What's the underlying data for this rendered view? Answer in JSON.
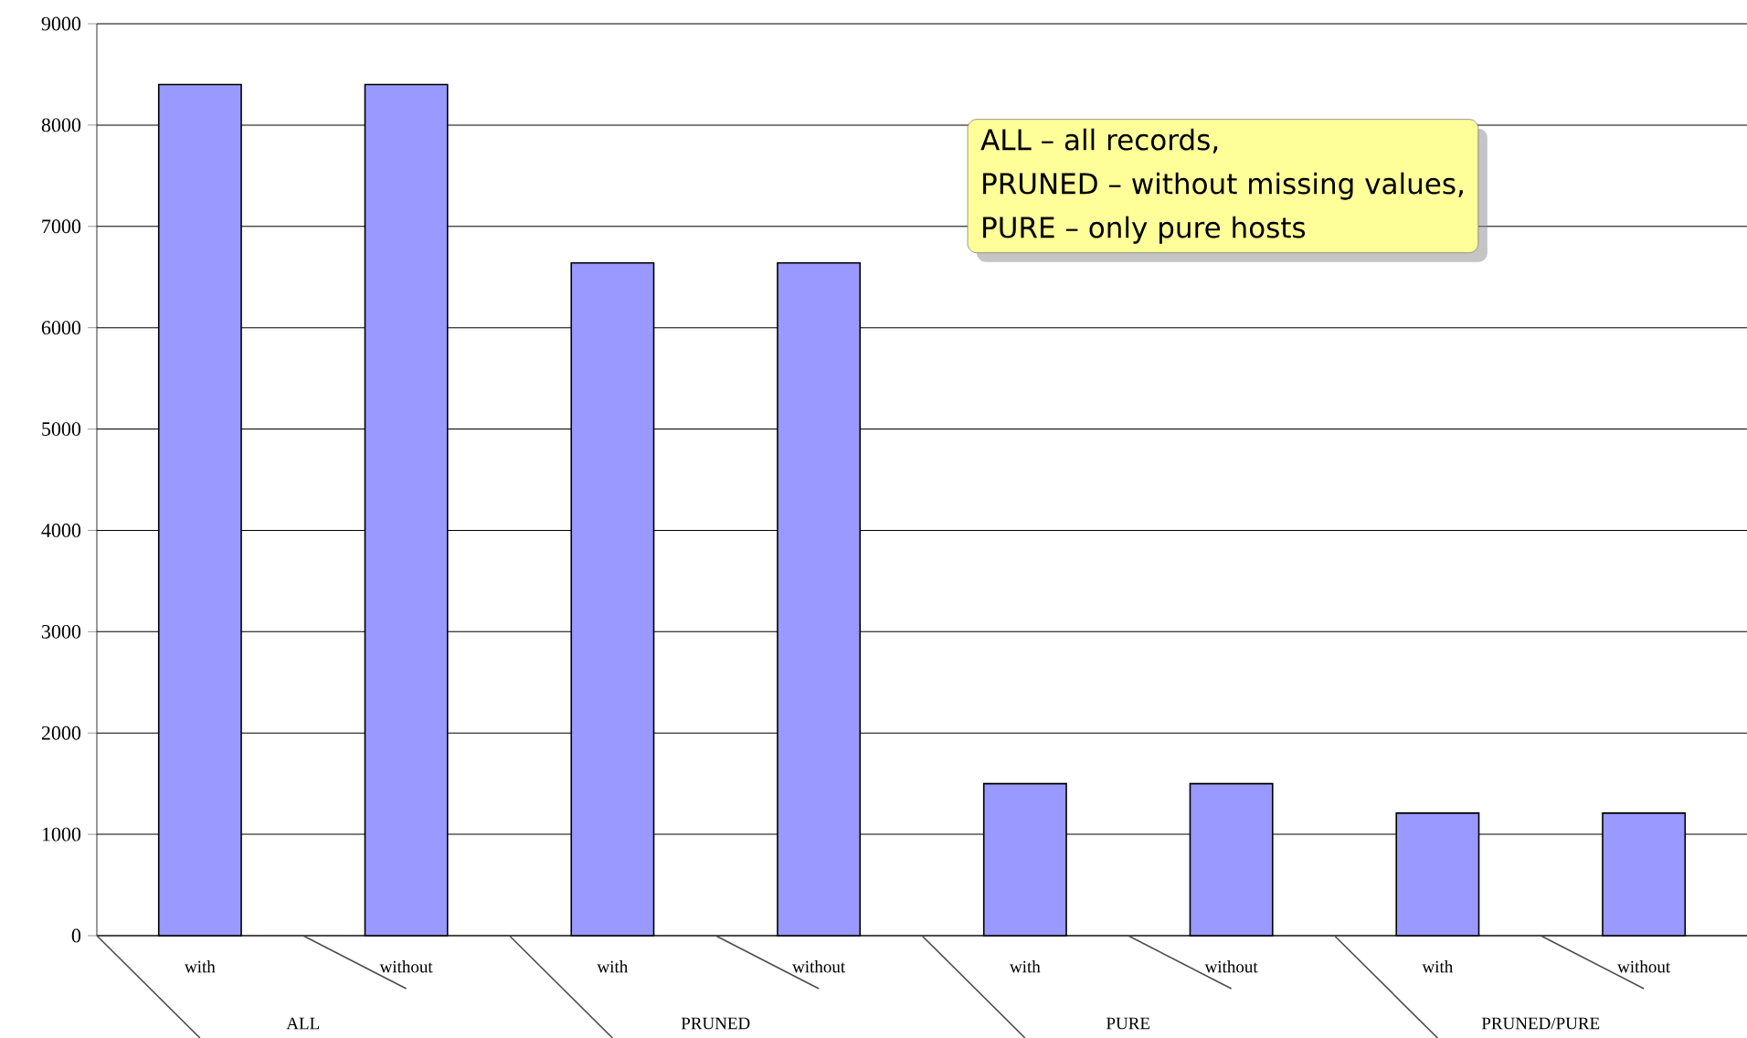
{
  "chart_data": {
    "type": "bar",
    "categories": [
      "with",
      "without",
      "with",
      "without",
      "with",
      "without",
      "with",
      "without"
    ],
    "values": [
      8400,
      8400,
      6640,
      6640,
      1500,
      1500,
      1210,
      1210
    ],
    "color": "#9999ff",
    "ylim": [
      0,
      9000
    ],
    "yticks": [
      0,
      1000,
      2000,
      3000,
      4000,
      5000,
      6000,
      7000,
      8000,
      9000
    ],
    "grid": "y",
    "annotations": [
      "ALL",
      "PRUNED",
      "PURE",
      "PRUNED/PURE",
      "ALL – all records,",
      "PRUNED – without missing values,",
      "PURE – only pure hosts"
    ]
  }
}
